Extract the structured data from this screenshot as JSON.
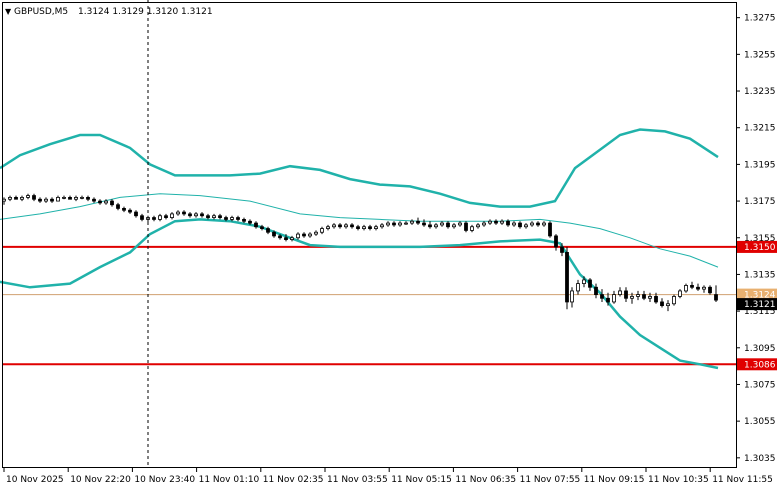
{
  "header": {
    "symbol_label": "GBPUSD,M5",
    "ohlc": "1.3124 1.3129 1.3120 1.3121"
  },
  "colors": {
    "background": "#ffffff",
    "candle": "#000000",
    "bollinger_bands": "#20b2aa",
    "moving_average": "#20b2aa",
    "horizontal_levels": "#e00000",
    "current_price": "#000000",
    "last_line": "#d0a070"
  },
  "chart_data": {
    "type": "candlestick",
    "title": "",
    "xlabel": "",
    "ylabel": "",
    "x_ticks": [
      "10 Nov 2025",
      "10 Nov 22:20",
      "10 Nov 23:40",
      "11 Nov 01:10",
      "11 Nov 02:35",
      "11 Nov 03:55",
      "11 Nov 05:15",
      "11 Nov 06:35",
      "11 Nov 07:55",
      "11 Nov 09:15",
      "11 Nov 10:35",
      "11 Nov 11:55"
    ],
    "y_ticks": [
      "1.3275",
      "1.3255",
      "1.3235",
      "1.3215",
      "1.3195",
      "1.3175",
      "1.3155",
      "1.3135",
      "1.3115",
      "1.3095",
      "1.3075",
      "1.3055",
      "1.3035"
    ],
    "ylim": [
      1.303,
      1.3283
    ],
    "levels": [
      {
        "label": "1.3150",
        "value": 1.315
      },
      {
        "label": "1.3086",
        "value": 1.3086
      }
    ],
    "last_price_line": {
      "label": "1.3124",
      "value": 1.3124
    },
    "current_price": {
      "label": "1.3121",
      "value": 1.3121
    },
    "series": [
      {
        "name": "Upper band",
        "values": [
          [
            0,
            1.3193
          ],
          [
            20,
            1.32
          ],
          [
            50,
            1.3206
          ],
          [
            80,
            1.3211
          ],
          [
            100,
            1.3211
          ],
          [
            130,
            1.3204
          ],
          [
            150,
            1.3195
          ],
          [
            175,
            1.3189
          ],
          [
            200,
            1.3189
          ],
          [
            230,
            1.3189
          ],
          [
            260,
            1.319
          ],
          [
            290,
            1.3194
          ],
          [
            320,
            1.3192
          ],
          [
            350,
            1.3187
          ],
          [
            380,
            1.3184
          ],
          [
            410,
            1.3183
          ],
          [
            440,
            1.3179
          ],
          [
            470,
            1.3174
          ],
          [
            500,
            1.3172
          ],
          [
            530,
            1.3172
          ],
          [
            555,
            1.3175
          ],
          [
            575,
            1.3193
          ],
          [
            600,
            1.3203
          ],
          [
            620,
            1.3211
          ],
          [
            640,
            1.3214
          ],
          [
            665,
            1.3213
          ],
          [
            690,
            1.3209
          ],
          [
            718,
            1.3199
          ]
        ]
      },
      {
        "name": "Middle line",
        "values": [
          [
            0,
            1.3165
          ],
          [
            40,
            1.3168
          ],
          [
            80,
            1.3172
          ],
          [
            120,
            1.3177
          ],
          [
            160,
            1.3179
          ],
          [
            200,
            1.3178
          ],
          [
            250,
            1.3175
          ],
          [
            300,
            1.3168
          ],
          [
            340,
            1.3166
          ],
          [
            380,
            1.3165
          ],
          [
            420,
            1.3164
          ],
          [
            460,
            1.3164
          ],
          [
            500,
            1.3164
          ],
          [
            540,
            1.3165
          ],
          [
            570,
            1.3163
          ],
          [
            600,
            1.316
          ],
          [
            630,
            1.3155
          ],
          [
            660,
            1.3149
          ],
          [
            690,
            1.3145
          ],
          [
            718,
            1.3139
          ]
        ]
      },
      {
        "name": "Lower band",
        "values": [
          [
            0,
            1.3131
          ],
          [
            30,
            1.3128
          ],
          [
            70,
            1.313
          ],
          [
            100,
            1.3139
          ],
          [
            130,
            1.3147
          ],
          [
            150,
            1.3157
          ],
          [
            175,
            1.3164
          ],
          [
            200,
            1.3165
          ],
          [
            230,
            1.3164
          ],
          [
            260,
            1.3161
          ],
          [
            290,
            1.3155
          ],
          [
            310,
            1.3151
          ],
          [
            340,
            1.315
          ],
          [
            380,
            1.315
          ],
          [
            420,
            1.315
          ],
          [
            460,
            1.3151
          ],
          [
            500,
            1.3153
          ],
          [
            540,
            1.3154
          ],
          [
            560,
            1.3152
          ],
          [
            580,
            1.3135
          ],
          [
            600,
            1.3125
          ],
          [
            620,
            1.3112
          ],
          [
            640,
            1.3102
          ],
          [
            660,
            1.3095
          ],
          [
            680,
            1.3088
          ],
          [
            700,
            1.3086
          ],
          [
            718,
            1.3084
          ]
        ]
      }
    ],
    "candles": [
      [
        4,
        1.3175,
        1.3177,
        1.3173,
        1.3176
      ],
      [
        10,
        1.3176,
        1.3178,
        1.3175,
        1.3177
      ],
      [
        16,
        1.3177,
        1.3178,
        1.3176,
        1.3176
      ],
      [
        22,
        1.3176,
        1.3178,
        1.3175,
        1.3177
      ],
      [
        28,
        1.3177,
        1.3179,
        1.3176,
        1.3178
      ],
      [
        34,
        1.3178,
        1.3179,
        1.3175,
        1.3176
      ],
      [
        40,
        1.3176,
        1.3177,
        1.3174,
        1.3175
      ],
      [
        46,
        1.3175,
        1.3177,
        1.3174,
        1.3176
      ],
      [
        52,
        1.3176,
        1.3177,
        1.3174,
        1.3175
      ],
      [
        58,
        1.3175,
        1.3178,
        1.3175,
        1.3177
      ],
      [
        64,
        1.3177,
        1.3178,
        1.3176,
        1.3177
      ],
      [
        70,
        1.3177,
        1.3178,
        1.3176,
        1.3176
      ],
      [
        76,
        1.3176,
        1.3178,
        1.3175,
        1.3177
      ],
      [
        82,
        1.3177,
        1.3178,
        1.3176,
        1.3177
      ],
      [
        88,
        1.3177,
        1.3178,
        1.3175,
        1.3176
      ],
      [
        94,
        1.3176,
        1.3177,
        1.3174,
        1.3175
      ],
      [
        100,
        1.3175,
        1.3176,
        1.3173,
        1.3174
      ],
      [
        106,
        1.3174,
        1.3176,
        1.3173,
        1.3175
      ],
      [
        112,
        1.3175,
        1.3176,
        1.3172,
        1.3173
      ],
      [
        118,
        1.3173,
        1.3174,
        1.317,
        1.3171
      ],
      [
        124,
        1.3171,
        1.3172,
        1.3169,
        1.317
      ],
      [
        130,
        1.317,
        1.3171,
        1.3168,
        1.3169
      ],
      [
        136,
        1.3169,
        1.317,
        1.3166,
        1.3167
      ],
      [
        142,
        1.3167,
        1.3168,
        1.3164,
        1.3165
      ],
      [
        148,
        1.3165,
        1.3167,
        1.3163,
        1.3166
      ],
      [
        154,
        1.3166,
        1.3167,
        1.3164,
        1.3165
      ],
      [
        160,
        1.3165,
        1.3168,
        1.3164,
        1.3167
      ],
      [
        166,
        1.3167,
        1.3168,
        1.3165,
        1.3166
      ],
      [
        172,
        1.3166,
        1.3169,
        1.3165,
        1.3168
      ],
      [
        178,
        1.3168,
        1.317,
        1.3167,
        1.3169
      ],
      [
        184,
        1.3169,
        1.317,
        1.3167,
        1.3168
      ],
      [
        190,
        1.3168,
        1.3169,
        1.3166,
        1.3167
      ],
      [
        196,
        1.3167,
        1.3169,
        1.3166,
        1.3168
      ],
      [
        202,
        1.3168,
        1.3169,
        1.3166,
        1.3167
      ],
      [
        208,
        1.3167,
        1.3168,
        1.3165,
        1.3166
      ],
      [
        214,
        1.3166,
        1.3168,
        1.3165,
        1.3167
      ],
      [
        220,
        1.3167,
        1.3168,
        1.3165,
        1.3166
      ],
      [
        226,
        1.3166,
        1.3167,
        1.3164,
        1.3165
      ],
      [
        232,
        1.3165,
        1.3167,
        1.3164,
        1.3166
      ],
      [
        238,
        1.3166,
        1.3167,
        1.3164,
        1.3165
      ],
      [
        244,
        1.3165,
        1.3166,
        1.3163,
        1.3164
      ],
      [
        250,
        1.3164,
        1.3165,
        1.3162,
        1.3163
      ],
      [
        256,
        1.3163,
        1.3164,
        1.316,
        1.3161
      ],
      [
        262,
        1.3161,
        1.3162,
        1.3159,
        1.316
      ],
      [
        268,
        1.316,
        1.3161,
        1.3157,
        1.3158
      ],
      [
        274,
        1.3158,
        1.3159,
        1.3155,
        1.3156
      ],
      [
        280,
        1.3156,
        1.3157,
        1.3154,
        1.3155
      ],
      [
        286,
        1.3155,
        1.3157,
        1.3153,
        1.3154
      ],
      [
        292,
        1.3154,
        1.3156,
        1.3153,
        1.3155
      ],
      [
        298,
        1.3155,
        1.3158,
        1.3154,
        1.3157
      ],
      [
        304,
        1.3157,
        1.3158,
        1.3155,
        1.3156
      ],
      [
        310,
        1.3156,
        1.3158,
        1.3155,
        1.3157
      ],
      [
        316,
        1.3157,
        1.3159,
        1.3156,
        1.3158
      ],
      [
        322,
        1.3158,
        1.3161,
        1.3157,
        1.316
      ],
      [
        328,
        1.316,
        1.3162,
        1.3159,
        1.3161
      ],
      [
        334,
        1.3161,
        1.3163,
        1.316,
        1.3162
      ],
      [
        340,
        1.3162,
        1.3163,
        1.316,
        1.3161
      ],
      [
        346,
        1.3161,
        1.3163,
        1.316,
        1.3162
      ],
      [
        352,
        1.3162,
        1.3163,
        1.316,
        1.3161
      ],
      [
        358,
        1.3161,
        1.3162,
        1.3159,
        1.316
      ],
      [
        364,
        1.316,
        1.3162,
        1.3159,
        1.3161
      ],
      [
        370,
        1.3161,
        1.3162,
        1.3159,
        1.316
      ],
      [
        376,
        1.316,
        1.3162,
        1.3159,
        1.3161
      ],
      [
        382,
        1.3161,
        1.3163,
        1.316,
        1.3162
      ],
      [
        388,
        1.3162,
        1.3164,
        1.3161,
        1.3163
      ],
      [
        394,
        1.3163,
        1.3164,
        1.3161,
        1.3162
      ],
      [
        400,
        1.3162,
        1.3164,
        1.3161,
        1.3163
      ],
      [
        406,
        1.3163,
        1.3164,
        1.3162,
        1.3163
      ],
      [
        412,
        1.3163,
        1.3165,
        1.3162,
        1.3164
      ],
      [
        418,
        1.3164,
        1.3166,
        1.3162,
        1.3163
      ],
      [
        424,
        1.3163,
        1.3165,
        1.3161,
        1.3162
      ],
      [
        430,
        1.3162,
        1.3164,
        1.316,
        1.3161
      ],
      [
        436,
        1.3161,
        1.3163,
        1.316,
        1.3162
      ],
      [
        442,
        1.3162,
        1.3164,
        1.3161,
        1.3163
      ],
      [
        448,
        1.3163,
        1.3164,
        1.316,
        1.3161
      ],
      [
        454,
        1.3161,
        1.3163,
        1.316,
        1.3162
      ],
      [
        460,
        1.3162,
        1.3164,
        1.3161,
        1.3163
      ],
      [
        466,
        1.3163,
        1.3164,
        1.3158,
        1.3159
      ],
      [
        472,
        1.3159,
        1.3162,
        1.3158,
        1.3161
      ],
      [
        478,
        1.3161,
        1.3163,
        1.316,
        1.3162
      ],
      [
        484,
        1.3162,
        1.3164,
        1.3161,
        1.3163
      ],
      [
        490,
        1.3163,
        1.3165,
        1.3162,
        1.3164
      ],
      [
        496,
        1.3164,
        1.3165,
        1.3162,
        1.3163
      ],
      [
        502,
        1.3163,
        1.3165,
        1.3162,
        1.3164
      ],
      [
        508,
        1.3164,
        1.3165,
        1.3161,
        1.3162
      ],
      [
        514,
        1.3162,
        1.3164,
        1.3161,
        1.3163
      ],
      [
        520,
        1.3163,
        1.3164,
        1.316,
        1.3161
      ],
      [
        526,
        1.3161,
        1.3163,
        1.316,
        1.3162
      ],
      [
        532,
        1.3162,
        1.3164,
        1.3161,
        1.3163
      ],
      [
        538,
        1.3163,
        1.3164,
        1.3161,
        1.3162
      ],
      [
        544,
        1.3162,
        1.3164,
        1.3161,
        1.3163
      ],
      [
        550,
        1.3163,
        1.3164,
        1.3155,
        1.3156
      ],
      [
        556,
        1.3156,
        1.3157,
        1.3148,
        1.315
      ],
      [
        562,
        1.315,
        1.3152,
        1.3145,
        1.3147
      ],
      [
        567,
        1.3147,
        1.315,
        1.3116,
        1.312
      ],
      [
        572,
        1.312,
        1.3128,
        1.3117,
        1.3126
      ],
      [
        578,
        1.3126,
        1.3132,
        1.3124,
        1.313
      ],
      [
        584,
        1.313,
        1.3134,
        1.3128,
        1.3132
      ],
      [
        590,
        1.3132,
        1.3133,
        1.3126,
        1.3128
      ],
      [
        596,
        1.3128,
        1.313,
        1.3122,
        1.3124
      ],
      [
        602,
        1.3124,
        1.3127,
        1.312,
        1.3122
      ],
      [
        608,
        1.3122,
        1.3125,
        1.3118,
        1.312
      ],
      [
        614,
        1.312,
        1.3126,
        1.3119,
        1.3124
      ],
      [
        620,
        1.3124,
        1.3128,
        1.3123,
        1.3126
      ],
      [
        626,
        1.3126,
        1.3128,
        1.312,
        1.3122
      ],
      [
        632,
        1.3122,
        1.3125,
        1.3119,
        1.3123
      ],
      [
        638,
        1.3123,
        1.3126,
        1.3121,
        1.3124
      ],
      [
        644,
        1.3124,
        1.3126,
        1.3121,
        1.3122
      ],
      [
        650,
        1.3122,
        1.3125,
        1.312,
        1.3123
      ],
      [
        656,
        1.3123,
        1.3125,
        1.3119,
        1.312
      ],
      [
        662,
        1.312,
        1.3122,
        1.3117,
        1.3118
      ],
      [
        668,
        1.3118,
        1.3121,
        1.3115,
        1.3119
      ],
      [
        674,
        1.3119,
        1.3124,
        1.3118,
        1.3123
      ],
      [
        680,
        1.3123,
        1.3127,
        1.3122,
        1.3126
      ],
      [
        686,
        1.3126,
        1.313,
        1.3125,
        1.3129
      ],
      [
        692,
        1.3129,
        1.3131,
        1.3127,
        1.3128
      ],
      [
        698,
        1.3128,
        1.313,
        1.3126,
        1.3127
      ],
      [
        704,
        1.3127,
        1.3129,
        1.3125,
        1.3128
      ],
      [
        710,
        1.3128,
        1.3129,
        1.3124,
        1.3125
      ],
      [
        716,
        1.3124,
        1.3129,
        1.312,
        1.3121
      ]
    ]
  }
}
